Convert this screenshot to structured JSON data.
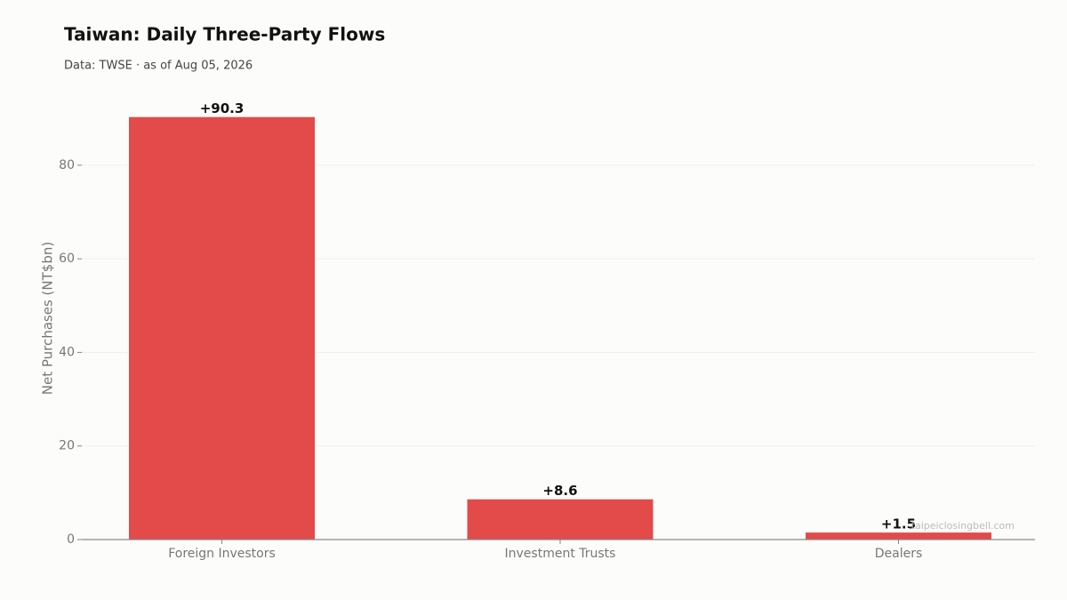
{
  "chart_data": {
    "type": "bar",
    "title": "Taiwan: Daily Three-Party Flows",
    "subtitle": "Data: TWSE · as of Aug 05, 2026",
    "y_label": "Net Purchases (NT$bn)",
    "watermark": "taipeiclosingbell.com",
    "categories": [
      "Foreign Investors",
      "Investment Trusts",
      "Dealers"
    ],
    "values": [
      90.3,
      8.6,
      1.5
    ],
    "value_labels": [
      "+90.3",
      "+8.6",
      "+1.5"
    ],
    "color": "#e34a4a",
    "ylim": [
      0,
      94.8
    ],
    "yticks": [
      0,
      20,
      40,
      60,
      80
    ],
    "grid": true
  }
}
